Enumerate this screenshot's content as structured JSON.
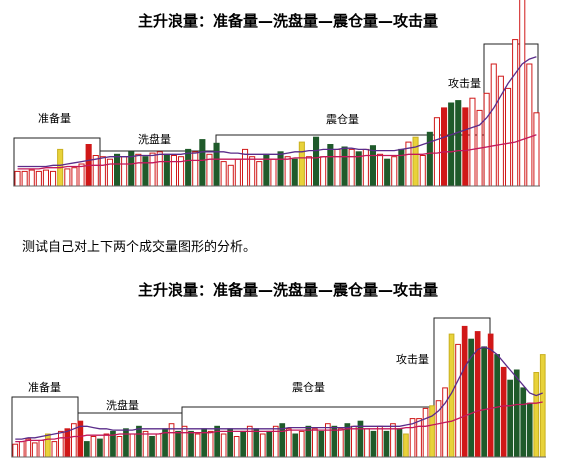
{
  "top": {
    "title": "主升浪量：准备量—洗盘量—震仓量—攻击量",
    "chart_data": {
      "type": "bar",
      "phases": [
        "准备量",
        "洗盘量",
        "震仓量",
        "攻击量"
      ],
      "series": [
        {
          "values": [
            12,
            12,
            13,
            12,
            13,
            12,
            30,
            14,
            15,
            18,
            34,
            25,
            24,
            22,
            26,
            24,
            28,
            26,
            24,
            27,
            28,
            26,
            25,
            24,
            30,
            28,
            38,
            26,
            35,
            20,
            17,
            22,
            30,
            24,
            20,
            26,
            22,
            28,
            24,
            22,
            36,
            24,
            40,
            24,
            34,
            30,
            32,
            30,
            28,
            30,
            33,
            26,
            22,
            24,
            30,
            36,
            40,
            25,
            44,
            56,
            64,
            68,
            70,
            64,
            72,
            62,
            76,
            100,
            90,
            80,
            120,
            180,
            100,
            60
          ],
          "colors": [
            "#ffffff",
            "#ffffff",
            "#ffffff",
            "#ffffff",
            "#ffffff",
            "#ffffff",
            "#e8d23a",
            "#ffffff",
            "#ffffff",
            "#ffffff",
            "#d01818",
            "#ffffff",
            "#ffffff",
            "#ffffff",
            "#1f5a2a",
            "#ffffff",
            "#1f5a2a",
            "#ffffff",
            "#1f5a2a",
            "#ffffff",
            "#ffffff",
            "#1f5a2a",
            "#ffffff",
            "#ffffff",
            "#1f5a2a",
            "#ffffff",
            "#1f5a2a",
            "#ffffff",
            "#1f5a2a",
            "#ffffff",
            "#ffffff",
            "#ffffff",
            "#ffffff",
            "#ffffff",
            "#ffffff",
            "#1f5a2a",
            "#ffffff",
            "#1f5a2a",
            "#ffffff",
            "#1f5a2a",
            "#e8d23a",
            "#ffffff",
            "#1f5a2a",
            "#ffffff",
            "#1f5a2a",
            "#ffffff",
            "#1f5a2a",
            "#ffffff",
            "#1f5a2a",
            "#ffffff",
            "#1f5a2a",
            "#ffffff",
            "#1f5a2a",
            "#ffffff",
            "#1f5a2a",
            "#ffffff",
            "#e8d23a",
            "#ffffff",
            "#1f5a2a",
            "#ffffff",
            "#d01818",
            "#1f5a2a",
            "#1f5a2a",
            "#d01818",
            "#ffffff",
            "#ffffff",
            "#ffffff",
            "#ffffff",
            "#ffffff",
            "#ffffff",
            "#ffffff",
            "#ffffff",
            "#ffffff",
            "#ffffff"
          ]
        },
        {
          "name": "ma_short",
          "values": [
            16,
            16,
            16,
            16,
            16,
            17,
            17,
            18,
            19,
            20,
            21,
            22,
            23,
            24,
            24,
            24,
            24,
            25,
            25,
            25,
            26,
            26,
            26,
            26,
            27,
            27,
            28,
            28,
            28,
            28,
            27,
            27,
            26,
            26,
            26,
            26,
            26,
            26,
            27,
            28,
            28,
            29,
            29,
            30,
            30,
            30,
            31,
            31,
            30,
            30,
            29,
            29,
            29,
            29,
            30,
            31,
            32,
            34,
            36,
            38,
            40,
            42,
            44,
            46,
            48,
            50,
            56,
            64,
            74,
            84,
            92,
            100,
            104,
            106
          ]
        },
        {
          "name": "ma_long",
          "values": [
            14,
            14,
            14,
            14,
            15,
            15,
            15,
            16,
            16,
            16,
            17,
            17,
            17,
            18,
            18,
            18,
            18,
            19,
            19,
            19,
            20,
            20,
            20,
            20,
            21,
            21,
            21,
            22,
            22,
            22,
            22,
            22,
            22,
            22,
            22,
            22,
            22,
            22,
            22,
            23,
            23,
            23,
            23,
            24,
            24,
            24,
            24,
            24,
            24,
            25,
            25,
            25,
            25,
            25,
            25,
            26,
            26,
            26,
            27,
            27,
            28,
            28,
            29,
            29,
            30,
            31,
            32,
            33,
            34,
            35,
            36,
            38,
            40,
            42
          ]
        }
      ]
    }
  },
  "note": "测试自己对上下两个成交量图形的分析。",
  "bottom": {
    "title": "主升浪量：准备量—洗盘量—震仓量—攻击量",
    "chart_data": {
      "type": "bar",
      "phases": [
        "准备量",
        "洗盘量",
        "震仓量",
        "攻击量"
      ],
      "series": [
        {
          "values": [
            10,
            12,
            14,
            11,
            13,
            18,
            12,
            20,
            22,
            26,
            28,
            12,
            16,
            14,
            18,
            20,
            16,
            22,
            18,
            24,
            20,
            16,
            18,
            22,
            26,
            20,
            24,
            20,
            18,
            22,
            20,
            24,
            18,
            22,
            16,
            20,
            24,
            22,
            18,
            20,
            24,
            26,
            22,
            18,
            20,
            24,
            22,
            20,
            26,
            24,
            22,
            26,
            24,
            28,
            22,
            20,
            24,
            20,
            26,
            22,
            18,
            30,
            30,
            38,
            40,
            44,
            54,
            96,
            88,
            102,
            92,
            98,
            86,
            96,
            80,
            70,
            60,
            68,
            54,
            42,
            66,
            80
          ],
          "colors": [
            "#ffffff",
            "#ffffff",
            "#ffffff",
            "#ffffff",
            "#ffffff",
            "#e8d23a",
            "#ffffff",
            "#ffffff",
            "#d01818",
            "#ffffff",
            "#d01818",
            "#1f5a2a",
            "#ffffff",
            "#1f5a2a",
            "#ffffff",
            "#1f5a2a",
            "#ffffff",
            "#1f5a2a",
            "#ffffff",
            "#1f5a2a",
            "#ffffff",
            "#1f5a2a",
            "#ffffff",
            "#1f5a2a",
            "#ffffff",
            "#1f5a2a",
            "#ffffff",
            "#1f5a2a",
            "#ffffff",
            "#1f5a2a",
            "#ffffff",
            "#1f5a2a",
            "#ffffff",
            "#1f5a2a",
            "#ffffff",
            "#1f5a2a",
            "#ffffff",
            "#1f5a2a",
            "#ffffff",
            "#1f5a2a",
            "#ffffff",
            "#1f5a2a",
            "#ffffff",
            "#1f5a2a",
            "#ffffff",
            "#1f5a2a",
            "#ffffff",
            "#1f5a2a",
            "#ffffff",
            "#1f5a2a",
            "#ffffff",
            "#1f5a2a",
            "#ffffff",
            "#1f5a2a",
            "#ffffff",
            "#1f5a2a",
            "#ffffff",
            "#1f5a2a",
            "#ffffff",
            "#1f5a2a",
            "#e8d23a",
            "#ffffff",
            "#ffffff",
            "#ffffff",
            "#e8d23a",
            "#ffffff",
            "#ffffff",
            "#e8d23a",
            "#ffffff",
            "#d01818",
            "#1f5a2a",
            "#d01818",
            "#1f5a2a",
            "#d01818",
            "#1f5a2a",
            "#d01818",
            "#1f5a2a",
            "#1f5a2a",
            "#1f5a2a",
            "#1f5a2a",
            "#e8d23a",
            "#e8d23a"
          ]
        },
        {
          "name": "ma_short",
          "values": [
            14,
            14,
            15,
            15,
            16,
            17,
            18,
            19,
            20,
            22,
            24,
            24,
            23,
            22,
            22,
            21,
            21,
            21,
            21,
            22,
            22,
            22,
            22,
            22,
            22,
            22,
            22,
            22,
            22,
            22,
            22,
            22,
            22,
            22,
            22,
            22,
            22,
            22,
            22,
            22,
            22,
            22,
            23,
            23,
            23,
            23,
            23,
            23,
            23,
            23,
            23,
            23,
            24,
            24,
            24,
            24,
            24,
            24,
            24,
            24,
            25,
            26,
            28,
            30,
            32,
            36,
            42,
            50,
            60,
            70,
            78,
            84,
            86,
            84,
            80,
            74,
            68,
            62,
            56,
            50,
            48,
            50
          ]
        },
        {
          "name": "ma_long",
          "values": [
            12,
            12,
            13,
            13,
            13,
            14,
            14,
            15,
            15,
            16,
            16,
            17,
            17,
            17,
            17,
            17,
            18,
            18,
            18,
            18,
            18,
            18,
            18,
            19,
            19,
            19,
            19,
            19,
            19,
            19,
            19,
            20,
            20,
            20,
            20,
            20,
            20,
            20,
            20,
            20,
            20,
            20,
            21,
            21,
            21,
            21,
            21,
            21,
            21,
            21,
            21,
            22,
            22,
            22,
            22,
            22,
            22,
            22,
            22,
            22,
            23,
            23,
            24,
            24,
            25,
            26,
            27,
            28,
            30,
            32,
            34,
            36,
            37,
            38,
            39,
            40,
            40,
            41,
            41,
            42,
            42,
            43
          ]
        }
      ]
    }
  }
}
